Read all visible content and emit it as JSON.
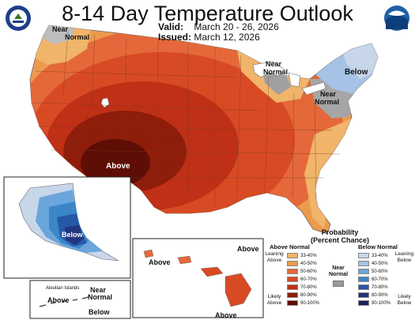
{
  "title": "8-14 Day Temperature Outlook",
  "valid": {
    "label": "Valid:",
    "value": "March 20 - 26, 2026"
  },
  "issued": {
    "label": "Issued:",
    "value": "March 12, 2026"
  },
  "logos": {
    "left": "usda-seal-icon",
    "right": "noaa-logo-icon"
  },
  "map_labels": {
    "near_normal_nw": "Near\nNormal",
    "above_sw": "Above",
    "near_normal_glakes": "Near\nNormal",
    "below_ne": "Below",
    "near_normal_east": "Near\nNormal",
    "alaska_below": "Below",
    "aleutian_title": "Aleutian Islands",
    "aleutian_above": "Above",
    "aleutian_near_normal": "Near\nNormal",
    "aleutian_below": "Below",
    "hawaii_above_1": "Above",
    "hawaii_above_2": "Above",
    "hawaii_above_3": "Above"
  },
  "legend": {
    "title": "Probability\n(Percent Chance)",
    "above_header": "Above Normal",
    "below_header": "Below Normal",
    "near_normal": "Near\nNormal",
    "leaning_above": "Leaning\nAbove",
    "likely_above": "Likely\nAbove",
    "leaning_below": "Leaning\nBelow",
    "likely_below": "Likely\nBelow",
    "above_rows": [
      {
        "range": "33-40%",
        "color": "#f0b46a"
      },
      {
        "range": "40-50%",
        "color": "#ec9a4d"
      },
      {
        "range": "50-60%",
        "color": "#e4683a"
      },
      {
        "range": "60-70%",
        "color": "#d84a24"
      },
      {
        "range": "70-80%",
        "color": "#bf3016"
      },
      {
        "range": "80-90%",
        "color": "#8f1d0b"
      },
      {
        "range": "90-100%",
        "color": "#5e0e04"
      }
    ],
    "below_rows": [
      {
        "range": "33-40%",
        "color": "#c8d6ea"
      },
      {
        "range": "40-50%",
        "color": "#a6c2e6"
      },
      {
        "range": "50-60%",
        "color": "#6aa6dc"
      },
      {
        "range": "60-70%",
        "color": "#3a86c8"
      },
      {
        "range": "70-80%",
        "color": "#2758a8"
      },
      {
        "range": "80-90%",
        "color": "#22357e"
      },
      {
        "range": "90-100%",
        "color": "#1d1f5a"
      }
    ],
    "near_normal_color": "#9a9a9a"
  }
}
